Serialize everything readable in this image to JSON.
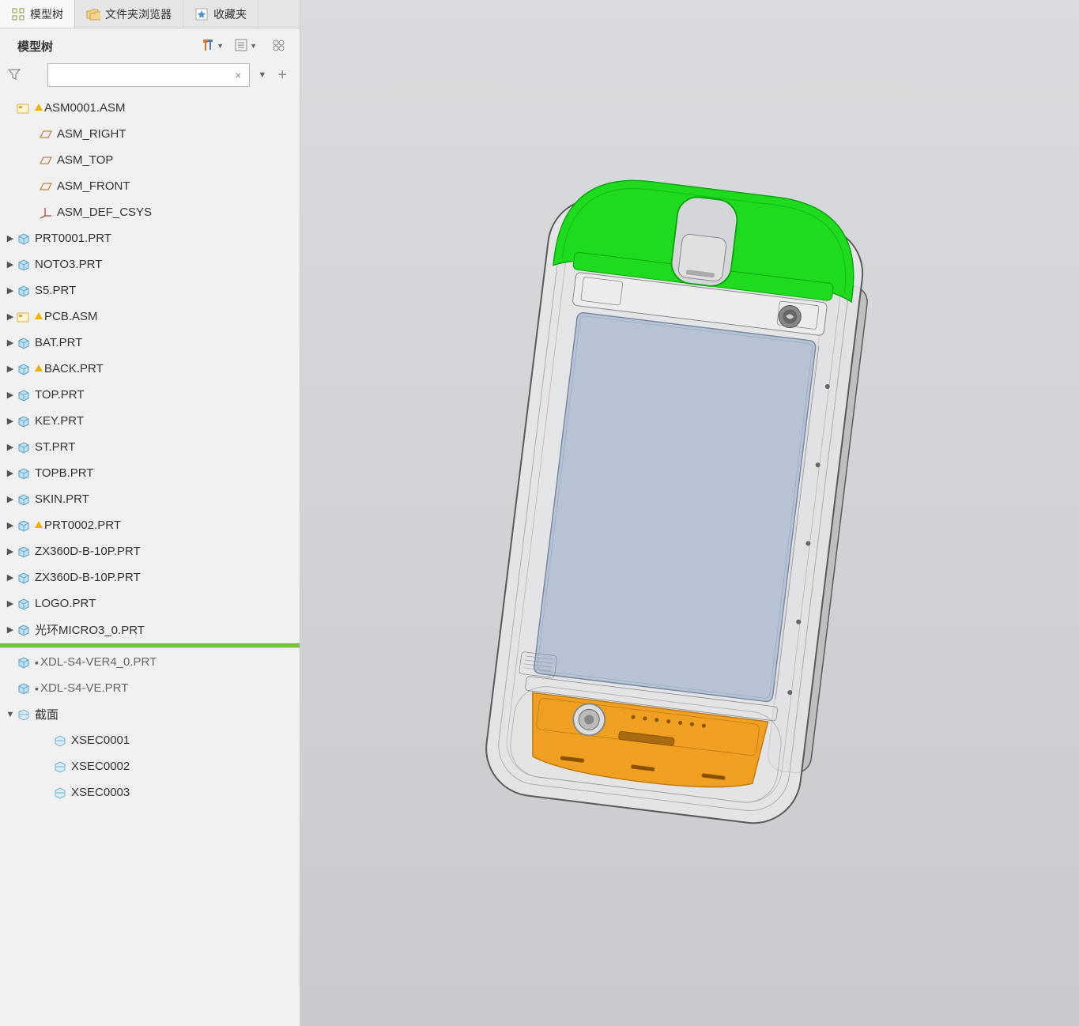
{
  "tabs": [
    {
      "label": "模型树",
      "active": true,
      "icon": "tree"
    },
    {
      "label": "文件夹浏览器",
      "active": false,
      "icon": "folder"
    },
    {
      "label": "收藏夹",
      "active": false,
      "icon": "star"
    }
  ],
  "panel": {
    "title": "模型树"
  },
  "search": {
    "value": "",
    "placeholder": ""
  },
  "tree": [
    {
      "indent": 0,
      "expand": "",
      "icon": "asm",
      "warn": true,
      "label": "ASM0001.ASM"
    },
    {
      "indent": 1,
      "expand": "",
      "icon": "datum",
      "warn": false,
      "label": "ASM_RIGHT"
    },
    {
      "indent": 1,
      "expand": "",
      "icon": "datum",
      "warn": false,
      "label": "ASM_TOP"
    },
    {
      "indent": 1,
      "expand": "",
      "icon": "datum",
      "warn": false,
      "label": "ASM_FRONT"
    },
    {
      "indent": 1,
      "expand": "",
      "icon": "csys",
      "warn": false,
      "label": "ASM_DEF_CSYS"
    },
    {
      "indent": 0,
      "expand": "▶",
      "icon": "prt",
      "warn": false,
      "label": "PRT0001.PRT"
    },
    {
      "indent": 0,
      "expand": "▶",
      "icon": "prt",
      "warn": false,
      "label": "NOTO3.PRT"
    },
    {
      "indent": 0,
      "expand": "▶",
      "icon": "prt",
      "warn": false,
      "label": "S5.PRT"
    },
    {
      "indent": 0,
      "expand": "▶",
      "icon": "asm",
      "warn": true,
      "label": "PCB.ASM"
    },
    {
      "indent": 0,
      "expand": "▶",
      "icon": "prt",
      "warn": false,
      "label": "BAT.PRT"
    },
    {
      "indent": 0,
      "expand": "▶",
      "icon": "prt",
      "warn": true,
      "label": "BACK.PRT"
    },
    {
      "indent": 0,
      "expand": "▶",
      "icon": "prt",
      "warn": false,
      "label": "TOP.PRT"
    },
    {
      "indent": 0,
      "expand": "▶",
      "icon": "prt",
      "warn": false,
      "label": "KEY.PRT"
    },
    {
      "indent": 0,
      "expand": "▶",
      "icon": "prt",
      "warn": false,
      "label": "ST.PRT"
    },
    {
      "indent": 0,
      "expand": "▶",
      "icon": "prt",
      "warn": false,
      "label": "TOPB.PRT"
    },
    {
      "indent": 0,
      "expand": "▶",
      "icon": "prt",
      "warn": false,
      "label": "SKIN.PRT"
    },
    {
      "indent": 0,
      "expand": "▶",
      "icon": "prt",
      "warn": true,
      "label": "PRT0002.PRT"
    },
    {
      "indent": 0,
      "expand": "▶",
      "icon": "prt",
      "warn": false,
      "label": "ZX360D-B-10P.PRT"
    },
    {
      "indent": 0,
      "expand": "▶",
      "icon": "prt",
      "warn": false,
      "label": "ZX360D-B-10P.PRT"
    },
    {
      "indent": 0,
      "expand": "▶",
      "icon": "prt",
      "warn": false,
      "label": "LOGO.PRT"
    },
    {
      "indent": 0,
      "expand": "▶",
      "icon": "prt",
      "warn": false,
      "label": "光环MICRO3_0.PRT"
    }
  ],
  "suppressed": [
    {
      "indent": 0,
      "expand": "",
      "icon": "prt",
      "label": "XDL-S4-VER4_0.PRT"
    },
    {
      "indent": 0,
      "expand": "",
      "icon": "prt",
      "label": "XDL-S4-VE.PRT"
    }
  ],
  "sections": {
    "header": {
      "indent": 0,
      "expand": "▼",
      "icon": "sec",
      "label": "截面"
    },
    "items": [
      {
        "indent": 1,
        "icon": "sec",
        "label": "XSEC0001"
      },
      {
        "indent": 1,
        "icon": "sec",
        "label": "XSEC0002"
      },
      {
        "indent": 1,
        "icon": "sec",
        "label": "XSEC0003"
      }
    ]
  },
  "model": {
    "colors": {
      "top_cap": "#1fdb1f",
      "top_cap_dark": "#0ea50e",
      "body_outline": "#5a5a5a",
      "body_fill": "#e8e8ea",
      "screen_fill": "#b7c3d4",
      "screen_edge": "#7a8aa0",
      "side_panel": "#bfbfbf",
      "bottom_pcb": "#f0a020",
      "bottom_pcb_dark": "#c07c10",
      "camera_ring": "#888",
      "camera_center": "#ddd",
      "speaker_dots": "#666",
      "wireframe": "#888"
    }
  }
}
